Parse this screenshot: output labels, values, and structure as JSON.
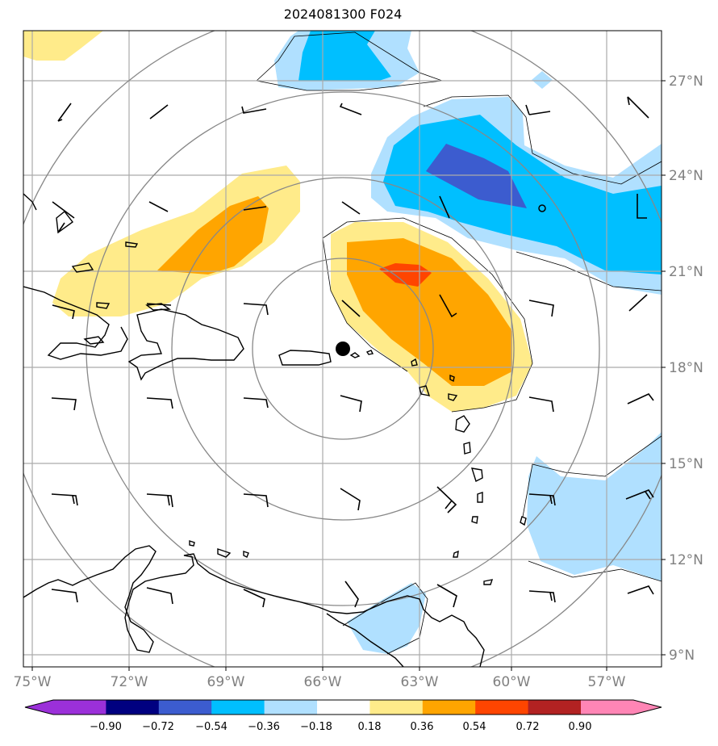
{
  "title": "2024081300 F024",
  "map": {
    "longitude_labels": [
      "75°W",
      "72°W",
      "69°W",
      "66°W",
      "63°W",
      "60°W",
      "57°W"
    ],
    "latitude_labels": [
      "27°N",
      "24°N",
      "21°N",
      "18°N",
      "15°N",
      "12°N",
      "9°N"
    ],
    "storm_center_marker": "black-dot",
    "range_rings": 4
  },
  "colorbar": {
    "tick_labels": [
      "−0.90",
      "−0.72",
      "−0.54",
      "−0.36",
      "−0.18",
      "0.18",
      "0.36",
      "0.54",
      "0.72",
      "0.90"
    ],
    "colors": [
      "#9b30d9",
      "#000080",
      "#3c5ccf",
      "#00bfff",
      "#b0e0ff",
      "#ffffff",
      "#ffeb8a",
      "#ffa500",
      "#ff4500",
      "#b22222",
      "#ff85b5"
    ]
  },
  "field_colors": {
    "light_yellow": "#ffeb8a",
    "orange": "#ffa500",
    "red_orange": "#ff4500",
    "light_blue": "#b0e0ff",
    "deep_sky_blue": "#00bfff",
    "royal_blue": "#3c5ccf"
  }
}
